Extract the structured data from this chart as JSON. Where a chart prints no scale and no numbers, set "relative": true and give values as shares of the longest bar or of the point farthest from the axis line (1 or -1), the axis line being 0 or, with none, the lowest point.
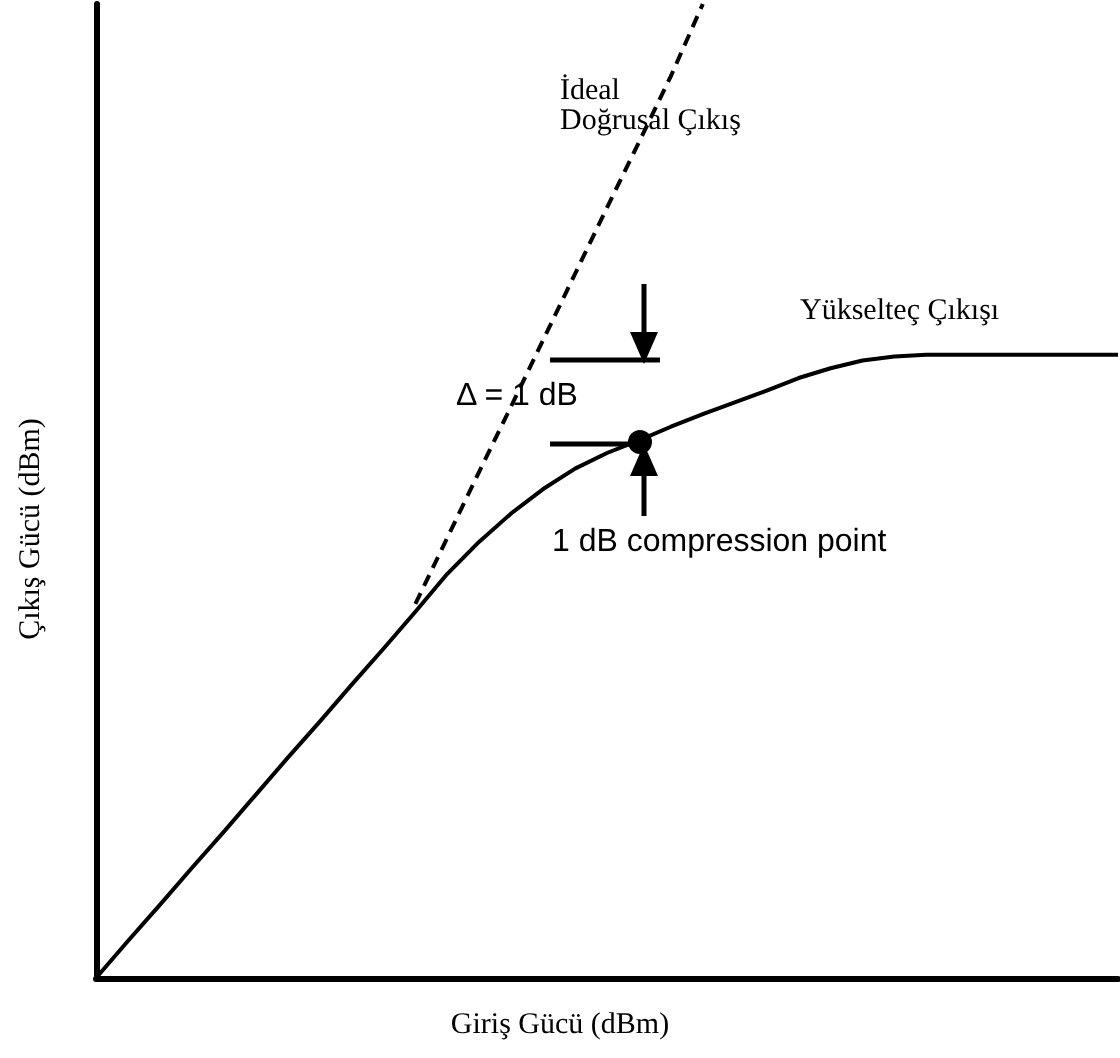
{
  "chart_data": {
    "type": "line",
    "relative": true,
    "xlabel": "Giriş Gücü (dBm)",
    "ylabel": "Çıkış Gücü (dBm)",
    "categories": [
      null,
      null,
      null,
      null,
      null,
      null,
      null,
      null,
      null,
      null,
      null,
      null,
      null,
      null,
      null,
      null,
      null,
      null,
      null,
      null,
      null,
      null,
      null,
      null,
      null,
      null,
      null,
      null,
      null,
      null,
      null,
      null,
      null
    ],
    "marker": "none",
    "grid": false,
    "legend": false,
    "series": [
      {
        "name": "Yükselteç Çıkışı",
        "color": "#000000",
        "line_style": "solid",
        "values": [
          0,
          0.038,
          0.075,
          0.113,
          0.15,
          0.188,
          0.226,
          0.263,
          0.301,
          0.338,
          0.376,
          0.415,
          0.448,
          0.477,
          0.502,
          0.523,
          0.539,
          0.552,
          0.566,
          0.579,
          0.591,
          0.603,
          0.616,
          0.626,
          0.634,
          0.638,
          0.64,
          0.64,
          0.64,
          0.64,
          0.64,
          0.64,
          0.64
        ]
      },
      {
        "name": "İdeal\nDoğrusal Çıkış",
        "color": "#000000",
        "line_style": "dashed",
        "values": [
          null,
          null,
          null,
          null,
          null,
          null,
          null,
          null,
          null,
          null,
          0.384,
          0.452,
          0.52,
          0.587,
          0.655,
          0.723,
          0.791,
          0.858,
          0.926,
          1,
          null,
          null,
          null,
          null,
          null,
          null,
          null,
          null,
          null,
          null,
          null,
          null,
          null
        ]
      }
    ],
    "annotations": [
      "Δ = 1 dB",
      "1 dB compression point"
    ]
  }
}
